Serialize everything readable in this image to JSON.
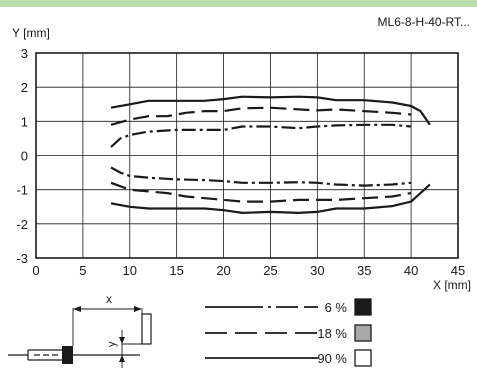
{
  "model_label": "ML6-8-H-40-RT...",
  "chart_data": {
    "type": "line",
    "title": "",
    "xlabel": "X [mm]",
    "ylabel": "Y [mm]",
    "xlim": [
      0,
      45
    ],
    "ylim": [
      -3,
      3
    ],
    "x_ticks": [
      0,
      5,
      10,
      15,
      20,
      25,
      30,
      35,
      40,
      45
    ],
    "y_ticks": [
      -3,
      -2,
      -1,
      0,
      1,
      2,
      3
    ],
    "grid": true,
    "series": [
      {
        "name": "90 %",
        "style": "solid",
        "upper": [
          [
            8,
            1.4
          ],
          [
            10,
            1.5
          ],
          [
            12,
            1.6
          ],
          [
            15,
            1.6
          ],
          [
            18,
            1.6
          ],
          [
            20,
            1.65
          ],
          [
            22,
            1.72
          ],
          [
            25,
            1.7
          ],
          [
            28,
            1.72
          ],
          [
            30,
            1.7
          ],
          [
            32,
            1.62
          ],
          [
            35,
            1.62
          ],
          [
            38,
            1.55
          ],
          [
            40,
            1.45
          ],
          [
            41,
            1.3
          ],
          [
            42,
            0.9
          ]
        ],
        "lower": [
          [
            8,
            -1.4
          ],
          [
            10,
            -1.5
          ],
          [
            12,
            -1.55
          ],
          [
            15,
            -1.55
          ],
          [
            18,
            -1.55
          ],
          [
            20,
            -1.6
          ],
          [
            22,
            -1.68
          ],
          [
            25,
            -1.65
          ],
          [
            28,
            -1.68
          ],
          [
            30,
            -1.65
          ],
          [
            32,
            -1.55
          ],
          [
            35,
            -1.55
          ],
          [
            38,
            -1.48
          ],
          [
            40,
            -1.35
          ],
          [
            41,
            -1.1
          ],
          [
            42,
            -0.85
          ]
        ]
      },
      {
        "name": "18 %",
        "style": "dashed",
        "upper": [
          [
            8,
            0.9
          ],
          [
            10,
            1.05
          ],
          [
            12,
            1.15
          ],
          [
            14,
            1.15
          ],
          [
            16,
            1.25
          ],
          [
            18,
            1.3
          ],
          [
            20,
            1.3
          ],
          [
            22,
            1.38
          ],
          [
            25,
            1.4
          ],
          [
            28,
            1.35
          ],
          [
            30,
            1.32
          ],
          [
            32,
            1.35
          ],
          [
            35,
            1.3
          ],
          [
            38,
            1.25
          ],
          [
            40,
            1.2
          ]
        ],
        "lower": [
          [
            8,
            -0.8
          ],
          [
            10,
            -1.0
          ],
          [
            12,
            -1.05
          ],
          [
            14,
            -1.1
          ],
          [
            16,
            -1.2
          ],
          [
            18,
            -1.25
          ],
          [
            20,
            -1.3
          ],
          [
            22,
            -1.35
          ],
          [
            25,
            -1.35
          ],
          [
            28,
            -1.3
          ],
          [
            30,
            -1.3
          ],
          [
            32,
            -1.3
          ],
          [
            35,
            -1.25
          ],
          [
            38,
            -1.2
          ],
          [
            40,
            -1.1
          ]
        ]
      },
      {
        "name": "6 %",
        "style": "dash-dot",
        "upper": [
          [
            8,
            0.25
          ],
          [
            9,
            0.5
          ],
          [
            10,
            0.6
          ],
          [
            12,
            0.7
          ],
          [
            15,
            0.75
          ],
          [
            18,
            0.75
          ],
          [
            20,
            0.75
          ],
          [
            22,
            0.85
          ],
          [
            25,
            0.85
          ],
          [
            28,
            0.8
          ],
          [
            30,
            0.85
          ],
          [
            32,
            0.88
          ],
          [
            35,
            0.9
          ],
          [
            38,
            0.9
          ],
          [
            40,
            0.85
          ]
        ],
        "lower": [
          [
            8,
            -0.35
          ],
          [
            9,
            -0.5
          ],
          [
            10,
            -0.6
          ],
          [
            12,
            -0.65
          ],
          [
            15,
            -0.7
          ],
          [
            18,
            -0.72
          ],
          [
            20,
            -0.75
          ],
          [
            22,
            -0.8
          ],
          [
            25,
            -0.8
          ],
          [
            28,
            -0.78
          ],
          [
            30,
            -0.8
          ],
          [
            32,
            -0.85
          ],
          [
            35,
            -0.88
          ],
          [
            38,
            -0.85
          ],
          [
            40,
            -0.8
          ]
        ]
      }
    ]
  },
  "legend": [
    {
      "label": "6 %",
      "style": "dash-dot",
      "swatch": "#1a1a1a"
    },
    {
      "label": "18 %",
      "style": "dashed",
      "swatch": "#a9a9a9"
    },
    {
      "label": "90 %",
      "style": "solid",
      "swatch": "#ffffff"
    }
  ],
  "diagram": {
    "x_label": "x",
    "y_label": "y"
  }
}
